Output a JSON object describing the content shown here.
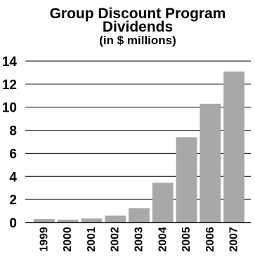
{
  "chart_data": {
    "type": "bar",
    "title": "Group Discount Program",
    "title_line2": "Dividends",
    "subtitle": "(in $ millions)",
    "xlabel": "",
    "ylabel": "",
    "categories": [
      "1999",
      "2000",
      "2001",
      "2002",
      "2003",
      "2004",
      "2005",
      "2006",
      "2007"
    ],
    "values": [
      0.3,
      0.25,
      0.35,
      0.6,
      1.25,
      3.45,
      7.4,
      10.3,
      13.1
    ],
    "ylim": [
      0,
      14
    ],
    "yticks": [
      "0",
      "2",
      "4",
      "6",
      "8",
      "10",
      "12",
      "14"
    ],
    "grid": true,
    "legend": "none",
    "colors": {
      "bar": "#a7a8aa",
      "text": "#000000",
      "grid": "#000000"
    }
  }
}
